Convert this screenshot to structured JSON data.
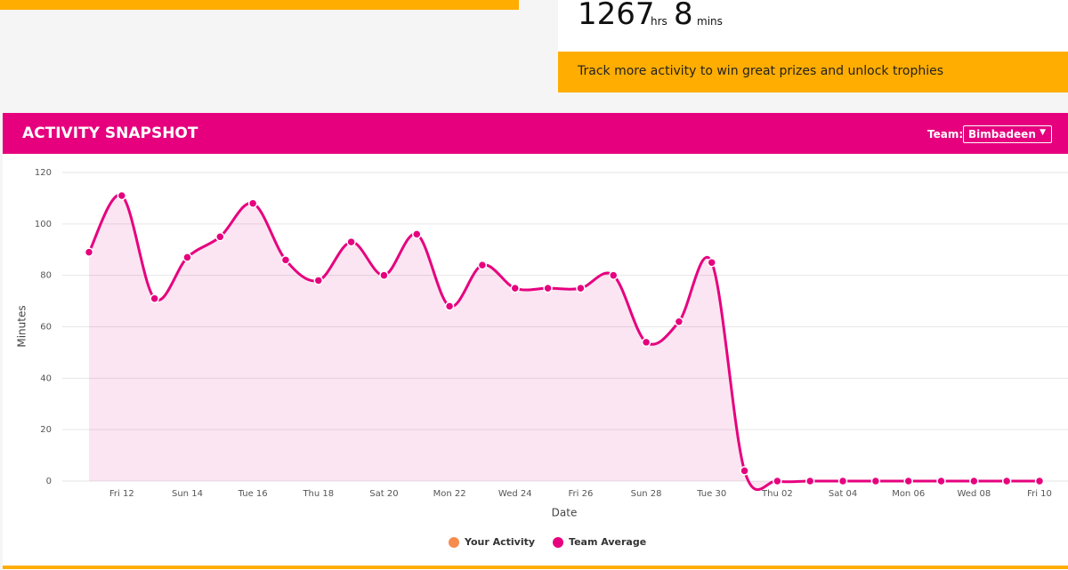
{
  "page": {
    "hours": "1267",
    "hours_unit": "hrs",
    "minutes": "8",
    "minutes_unit": "mins",
    "banner": "Track more activity to win great prizes and unlock trophies",
    "section_title": "ACTIVITY SNAPSHOT",
    "team_label": "Team:",
    "team_value": "Bimbadeen"
  },
  "chart_data": {
    "type": "line",
    "xlabel": "Date",
    "ylabel": "Minutes",
    "categories": [
      null,
      "Fri 12",
      null,
      "Sun 14",
      null,
      "Tue 16",
      null,
      "Thu 18",
      null,
      "Sat 20",
      null,
      "Mon 22",
      null,
      "Wed 24",
      null,
      "Fri 26",
      null,
      "Sun 28",
      null,
      "Tue 30",
      null,
      "Thu 02",
      null,
      "Sat 04",
      null,
      "Mon 06",
      null,
      "Wed 08",
      null,
      "Fri 10"
    ],
    "series": [
      {
        "name": "Your Activity",
        "color": "#f68b4e",
        "values": [
          null,
          null,
          null,
          null,
          null,
          null,
          null,
          null,
          null,
          null,
          null,
          null,
          null,
          null,
          null,
          null,
          null,
          null,
          null,
          null,
          null,
          null,
          null,
          null,
          null,
          null,
          null,
          null,
          null,
          null
        ]
      },
      {
        "name": "Team Average",
        "color": "#e6007e",
        "values": [
          89,
          111,
          71,
          87,
          95,
          108,
          86,
          78,
          93,
          80,
          96,
          68,
          84,
          75,
          75,
          75,
          80,
          54,
          62,
          85,
          4,
          0,
          0,
          0,
          0,
          0,
          0,
          0,
          0,
          0
        ]
      }
    ],
    "ylim": [
      0,
      120
    ],
    "yticks": [
      0,
      20,
      40,
      60,
      80,
      100,
      120
    ],
    "grid": true,
    "legend": "bottom"
  }
}
